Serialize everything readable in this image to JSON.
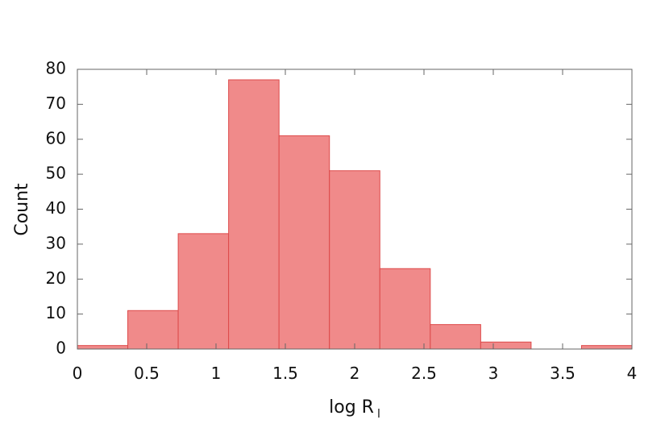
{
  "chart_data": {
    "type": "bar",
    "title": "",
    "xlabel": "log R",
    "xlabel_subscript": "l",
    "ylabel": "Count",
    "bin_width": 0.3636,
    "bins": [
      {
        "x0": 0.0,
        "x1": 0.3636,
        "value": 1
      },
      {
        "x0": 0.3636,
        "x1": 0.7273,
        "value": 11
      },
      {
        "x0": 0.7273,
        "x1": 1.0909,
        "value": 33
      },
      {
        "x0": 1.0909,
        "x1": 1.4545,
        "value": 77
      },
      {
        "x0": 1.4545,
        "x1": 1.8182,
        "value": 61
      },
      {
        "x0": 1.8182,
        "x1": 2.1818,
        "value": 51
      },
      {
        "x0": 2.1818,
        "x1": 2.5455,
        "value": 23
      },
      {
        "x0": 2.5455,
        "x1": 2.9091,
        "value": 7
      },
      {
        "x0": 2.9091,
        "x1": 3.2727,
        "value": 2
      },
      {
        "x0": 3.2727,
        "x1": 3.6364,
        "value": 0
      },
      {
        "x0": 3.6364,
        "x1": 4.0,
        "value": 1
      }
    ],
    "xlim": [
      0,
      4
    ],
    "ylim": [
      0,
      80
    ],
    "xticks": [
      "0",
      "0.5",
      "1",
      "1.5",
      "2",
      "2.5",
      "3",
      "3.5",
      "4"
    ],
    "yticks": [
      "0",
      "10",
      "20",
      "30",
      "40",
      "50",
      "60",
      "70",
      "80"
    ],
    "grid": false,
    "legend": "none",
    "colors": {
      "bar_fill": "#f08a8a",
      "bar_stroke": "#dd4a4a",
      "axis": "#666666",
      "text": "#111111"
    }
  }
}
